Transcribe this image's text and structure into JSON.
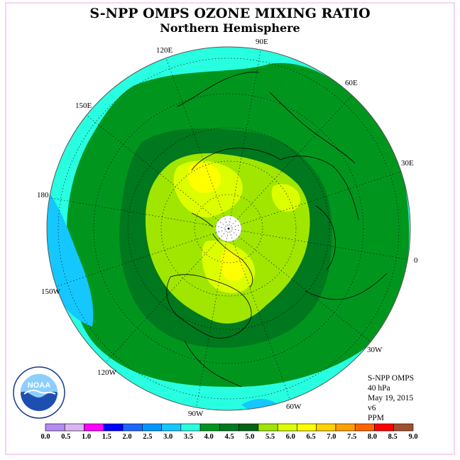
{
  "title": "S-NPP OMPS OZONE MIXING RATIO",
  "subtitle": "Northern Hemisphere",
  "meta": {
    "instrument": "S-NPP OMPS",
    "level": "40 hPa",
    "date": "May 19, 2015",
    "version": "v6",
    "units": "PPM"
  },
  "logo": {
    "text": "NOAA"
  },
  "longitude_labels": [
    "90E",
    "60E",
    "30E",
    "0",
    "30W",
    "60W",
    "90W",
    "120W",
    "150W",
    "180",
    "150E",
    "120E"
  ],
  "colorbar": {
    "tick_labels": [
      "0.0",
      "0.5",
      "1.0",
      "1.5",
      "2.0",
      "2.5",
      "3.0",
      "3.5",
      "4.0",
      "4.5",
      "5.0",
      "5.5",
      "6.0",
      "6.5",
      "7.0",
      "7.5",
      "8.0",
      "8.5",
      "9.0"
    ],
    "colors": [
      "#b58cf0",
      "#dcb4f5",
      "#ff00ff",
      "#0000ff",
      "#1e64ff",
      "#0096ff",
      "#14c8ff",
      "#28ffe1",
      "#00961e",
      "#00781e",
      "#006414",
      "#a0e600",
      "#dcff00",
      "#ffff00",
      "#ffd200",
      "#ffa000",
      "#ff6400",
      "#ff0000",
      "#a0502d"
    ]
  }
}
